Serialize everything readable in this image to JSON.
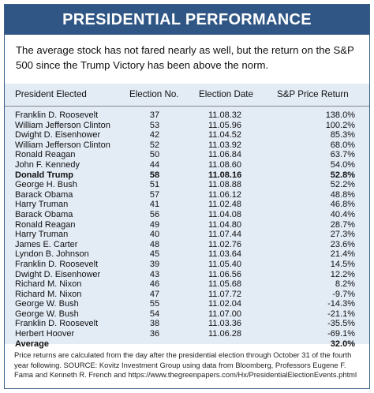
{
  "title": "PRESIDENTIAL PERFORMANCE",
  "intro": "The average stock has not fared nearly as well, but the return on the S&P 500 since the Trump Victory has been above the norm.",
  "table": {
    "headers": [
      "President Elected",
      "Election No.",
      "Election Date",
      "S&P Price Return"
    ],
    "rows": [
      {
        "president": "Franklin D. Roosevelt",
        "no": "37",
        "date": "11.08.32",
        "ret": "138.0%"
      },
      {
        "president": "William Jefferson Clinton",
        "no": "53",
        "date": "11.05.96",
        "ret": "100.2%"
      },
      {
        "president": "Dwight D. Eisenhower",
        "no": "42",
        "date": "11.04.52",
        "ret": "85.3%"
      },
      {
        "president": "William Jefferson Clinton",
        "no": "52",
        "date": "11.03.92",
        "ret": "68.0%"
      },
      {
        "president": "Ronald Reagan",
        "no": "50",
        "date": "11.06.84",
        "ret": "63.7%"
      },
      {
        "president": "John F. Kennedy",
        "no": "44",
        "date": "11.08.60",
        "ret": "54.0%"
      },
      {
        "president": "Donald Trump",
        "no": "58",
        "date": "11.08.16",
        "ret": "52.8%",
        "highlight": true
      },
      {
        "president": "George H. Bush",
        "no": "51",
        "date": "11.08.88",
        "ret": "52.2%"
      },
      {
        "president": "Barack Obama",
        "no": "57",
        "date": "11.06.12",
        "ret": "48.8%"
      },
      {
        "president": "Harry Truman",
        "no": "41",
        "date": "11.02.48",
        "ret": "46.8%"
      },
      {
        "president": "Barack Obama",
        "no": "56",
        "date": "11.04.08",
        "ret": "40.4%"
      },
      {
        "president": "Ronald Reagan",
        "no": "49",
        "date": "11.04.80",
        "ret": "28.7%"
      },
      {
        "president": "Harry Truman",
        "no": "40",
        "date": "11.07.44",
        "ret": "27.3%"
      },
      {
        "president": "James E. Carter",
        "no": "48",
        "date": "11.02.76",
        "ret": "23.6%"
      },
      {
        "president": "Lyndon B. Johnson",
        "no": "45",
        "date": "11.03.64",
        "ret": "21.4%"
      },
      {
        "president": "Franklin D. Roosevelt",
        "no": "39",
        "date": "11.05.40",
        "ret": "14.5%"
      },
      {
        "president": "Dwight D. Eisenhower",
        "no": "43",
        "date": "11.06.56",
        "ret": "12.2%"
      },
      {
        "president": "Richard M. Nixon",
        "no": "46",
        "date": "11.05.68",
        "ret": "8.2%"
      },
      {
        "president": "Richard M. Nixon",
        "no": "47",
        "date": "11.07.72",
        "ret": "-9.7%"
      },
      {
        "president": "George W. Bush",
        "no": "55",
        "date": "11.02.04",
        "ret": "-14.3%"
      },
      {
        "president": "George W. Bush",
        "no": "54",
        "date": "11.07.00",
        "ret": "-21.1%"
      },
      {
        "president": "Franklin D. Roosevelt",
        "no": "38",
        "date": "11.03.36",
        "ret": "-35.5%"
      },
      {
        "president": "Herbert Hoover",
        "no": "36",
        "date": "11.06.28",
        "ret": "-69.1%"
      },
      {
        "president": "Average",
        "no": "",
        "date": "",
        "ret": "32.0%",
        "highlight": true
      }
    ]
  },
  "footnote": "Price returns are calculated from the day after the presidential election through October 31 of the fourth year following. SOURCE: Kovitz Investment Group using data from Bloomberg, Professors Eugene F. Fama and Kenneth R. French and https://www.thegreenpapers.com/Hx/PresidentialElectionEvents.phtml"
}
